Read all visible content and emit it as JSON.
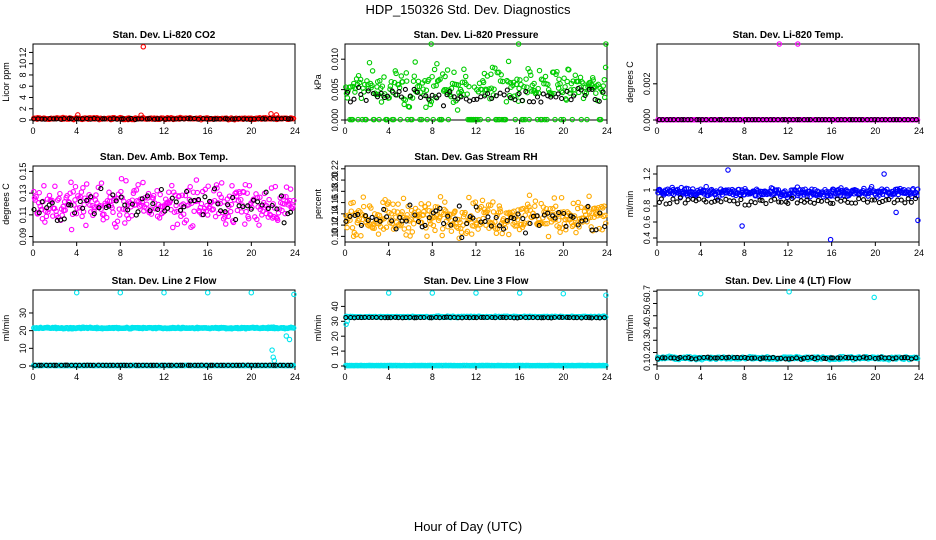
{
  "figure": {
    "title": "HDP_150326  Std. Dev. Diagnostics",
    "xlabel": "Hour of Day (UTC)"
  },
  "chart_data": [
    {
      "type": "scatter",
      "title": "Stan. Dev. Li-820 CO2",
      "ylabel": "Licor ppm",
      "xlim": [
        0,
        24
      ],
      "ylim": [
        0,
        13.5
      ],
      "xticks": [
        0,
        4,
        8,
        12,
        16,
        20,
        24
      ],
      "yticks": [
        0,
        2,
        4,
        6,
        8,
        10,
        12
      ],
      "color": "#ff0000",
      "series": [
        {
          "name": "samples",
          "base": 0.25,
          "spread": 0.25,
          "count": 260,
          "outliers": [
            [
              10.1,
              13.0
            ],
            [
              4.1,
              0.9
            ],
            [
              9.9,
              0.85
            ],
            [
              21.8,
              1.1
            ],
            [
              22.3,
              0.9
            ]
          ]
        },
        {
          "name": "averages",
          "base": 0.2,
          "spread": 0.1,
          "count": 70,
          "color": "#000000"
        }
      ]
    },
    {
      "type": "scatter",
      "title": "Stan. Dev. Li-820 Pressure",
      "ylabel": "kPa",
      "xlim": [
        0,
        24
      ],
      "ylim": [
        0,
        0.0125
      ],
      "xticks": [
        0,
        4,
        8,
        12,
        16,
        20,
        24
      ],
      "yticks": [
        0.0,
        0.005,
        0.01
      ],
      "ytick_labels": [
        "0.000",
        "0.005",
        "0.010"
      ],
      "color": "#00cc00",
      "series": [
        {
          "name": "samples",
          "base": 0.0055,
          "spread": 0.0048,
          "count": 320,
          "zero_rate": 0.25,
          "outliers": [
            [
              7.9,
              0.0125
            ],
            [
              15.9,
              0.0125
            ],
            [
              23.9,
              0.0125
            ]
          ]
        },
        {
          "name": "averages",
          "base": 0.004,
          "spread": 0.0022,
          "count": 70,
          "color": "#000000"
        }
      ]
    },
    {
      "type": "scatter",
      "title": "Stan. Dev. Li-820 Temp.",
      "ylabel": "degrees C",
      "xlim": [
        0,
        24
      ],
      "ylim": [
        0,
        0.0042
      ],
      "xticks": [
        0,
        4,
        8,
        12,
        16,
        20,
        24
      ],
      "yticks": [
        0.0,
        0.002
      ],
      "ytick_labels": [
        "0.000",
        "0.002"
      ],
      "color": "#ff00ff",
      "series": [
        {
          "name": "samples",
          "base": 0.0,
          "spread": 0.0,
          "count": 260,
          "outliers": [
            [
              11.2,
              0.0042
            ],
            [
              12.9,
              0.0042
            ]
          ]
        },
        {
          "name": "averages",
          "base": 0.0,
          "spread": 0.0,
          "count": 70,
          "color": "#000000"
        }
      ]
    },
    {
      "type": "scatter",
      "title": "Stan. Dev. Amb. Box Temp.",
      "ylabel": "degrees C",
      "xlim": [
        0,
        24
      ],
      "ylim": [
        0.085,
        0.155
      ],
      "xticks": [
        0,
        4,
        8,
        12,
        16,
        20,
        24
      ],
      "yticks": [
        0.09,
        0.11,
        0.13,
        0.15
      ],
      "color": "#ff00ff",
      "series": [
        {
          "name": "samples",
          "base": 0.12,
          "spread": 0.028,
          "count": 330
        },
        {
          "name": "averages",
          "base": 0.118,
          "spread": 0.02,
          "count": 70,
          "color": "#000000"
        }
      ]
    },
    {
      "type": "scatter",
      "title": "Stan. Dev. Gas Stream RH",
      "ylabel": "percent",
      "xlim": [
        0,
        24
      ],
      "ylim": [
        0.09,
        0.225
      ],
      "xticks": [
        0,
        4,
        8,
        12,
        16,
        20,
        24
      ],
      "yticks": [
        0.1,
        0.12,
        0.14,
        0.16,
        0.18,
        0.2,
        0.22
      ],
      "ytick_labels": [
        "0.10",
        "0.12",
        "0.14",
        "0.16",
        "0.18",
        "0.20",
        "0.22"
      ],
      "color": "#ffaa00",
      "series": [
        {
          "name": "samples",
          "base": 0.135,
          "spread": 0.045,
          "count": 360
        },
        {
          "name": "averages",
          "base": 0.13,
          "spread": 0.035,
          "count": 70,
          "color": "#000000"
        }
      ]
    },
    {
      "type": "scatter",
      "title": "Stan. Dev. Sample Flow",
      "ylabel": "ml/min",
      "xlim": [
        0,
        24
      ],
      "ylim": [
        0.35,
        1.3
      ],
      "xticks": [
        0,
        4,
        8,
        12,
        16,
        20,
        24
      ],
      "yticks": [
        0.4,
        0.6,
        0.8,
        1.0,
        1.2
      ],
      "color": "#0000ff",
      "series": [
        {
          "name": "samples",
          "base": 0.97,
          "spread": 0.08,
          "count": 340,
          "outliers": [
            [
              6.5,
              1.25
            ],
            [
              7.8,
              0.55
            ],
            [
              15.9,
              0.38
            ],
            [
              21.9,
              0.72
            ],
            [
              23.9,
              0.62
            ],
            [
              20.8,
              1.2
            ]
          ]
        },
        {
          "name": "averages",
          "base": 0.86,
          "spread": 0.06,
          "count": 70,
          "color": "#000000"
        }
      ]
    },
    {
      "type": "scatter",
      "title": "Stan. Dev. Line 2 Flow",
      "ylabel": "ml/min",
      "xlim": [
        0,
        24
      ],
      "ylim": [
        0,
        43
      ],
      "xticks": [
        0,
        4,
        8,
        12,
        16,
        20,
        24
      ],
      "yticks": [
        0,
        10,
        20,
        30
      ],
      "color": "#00e5ee",
      "series": [
        {
          "name": "samples",
          "base": 21.5,
          "spread": 0.6,
          "count": 300,
          "outliers": [
            [
              4.0,
              41.5
            ],
            [
              8.0,
              41.5
            ],
            [
              12.0,
              41.5
            ],
            [
              16.0,
              41.5
            ],
            [
              20.0,
              41.5
            ],
            [
              23.9,
              40.5
            ],
            [
              21.9,
              9.0
            ],
            [
              22.0,
              5.0
            ],
            [
              22.1,
              3.0
            ],
            [
              23.2,
              17.0
            ],
            [
              23.5,
              15.0
            ]
          ]
        },
        {
          "name": "baseline",
          "base": 0.3,
          "spread": 0.05,
          "count": 260
        },
        {
          "name": "averages",
          "base": 0.4,
          "spread": 0.05,
          "count": 70,
          "color": "#000000"
        }
      ]
    },
    {
      "type": "scatter",
      "title": "Stan. Dev. Line 3 Flow",
      "ylabel": "ml/min",
      "xlim": [
        0,
        24
      ],
      "ylim": [
        0,
        51
      ],
      "xticks": [
        0,
        4,
        8,
        12,
        16,
        20,
        24
      ],
      "yticks": [
        0,
        10,
        20,
        30,
        40
      ],
      "color": "#00e5ee",
      "series": [
        {
          "name": "samples",
          "base": 33.0,
          "spread": 0.6,
          "count": 300,
          "outliers": [
            [
              0.1,
              28.0
            ],
            [
              0.2,
              30.0
            ],
            [
              4.0,
              49.0
            ],
            [
              8.0,
              49.0
            ],
            [
              12.0,
              49.0
            ],
            [
              16.0,
              49.0
            ],
            [
              20.0,
              48.5
            ],
            [
              23.9,
              47.5
            ]
          ]
        },
        {
          "name": "baseline",
          "base": 0.3,
          "spread": 0.05,
          "count": 260
        },
        {
          "name": "averages",
          "base": 32.5,
          "spread": 0.3,
          "count": 70,
          "color": "#000000"
        }
      ]
    },
    {
      "type": "scatter",
      "title": "Stan. Dev. Line 4 (LT) Flow",
      "ylabel": "ml/min",
      "xlim": [
        0,
        24
      ],
      "ylim": [
        0.09,
        0.71
      ],
      "xticks": [
        0,
        4,
        8,
        12,
        16,
        20,
        24
      ],
      "yticks": [
        0.1,
        0.2,
        0.3,
        0.4,
        0.5,
        0.6,
        0.7
      ],
      "color": "#00e5ee",
      "series": [
        {
          "name": "samples",
          "base": 0.155,
          "spread": 0.018,
          "count": 300,
          "outliers": [
            [
              4.0,
              0.68
            ],
            [
              12.1,
              0.695
            ],
            [
              19.9,
              0.65
            ]
          ]
        },
        {
          "name": "averages",
          "base": 0.155,
          "spread": 0.012,
          "count": 70,
          "color": "#000000"
        }
      ]
    }
  ]
}
